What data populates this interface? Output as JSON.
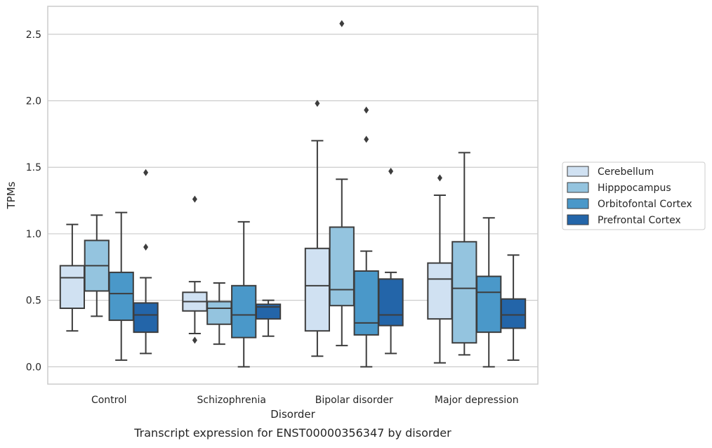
{
  "chart_data": {
    "type": "box",
    "title": "",
    "caption": "Transcript expression for ENST00000356347 by disorder",
    "xlabel": "Disorder",
    "ylabel": "TPMs",
    "ylim": [
      -0.13,
      2.71
    ],
    "yticks": [
      0.0,
      0.5,
      1.0,
      1.5,
      2.0,
      2.5
    ],
    "ytick_labels": [
      "0.0",
      "0.5",
      "1.0",
      "1.5",
      "2.0",
      "2.5"
    ],
    "grid": "horizontal",
    "legend_position": "right",
    "categories": [
      "Control",
      "Schizophrenia",
      "Bipolar disorder",
      "Major depression"
    ],
    "series": [
      {
        "name": "Cerebellum",
        "color": "#d0e1f2",
        "boxes": [
          {
            "whislo": 0.27,
            "q1": 0.44,
            "med": 0.67,
            "q3": 0.76,
            "whishi": 1.07,
            "fliers": []
          },
          {
            "whislo": 0.25,
            "q1": 0.42,
            "med": 0.49,
            "q3": 0.56,
            "whishi": 0.64,
            "fliers": [
              0.2,
              1.26
            ]
          },
          {
            "whislo": 0.08,
            "q1": 0.27,
            "med": 0.61,
            "q3": 0.89,
            "whishi": 1.7,
            "fliers": [
              1.98
            ]
          },
          {
            "whislo": 0.03,
            "q1": 0.36,
            "med": 0.66,
            "q3": 0.78,
            "whishi": 1.29,
            "fliers": [
              1.42
            ]
          }
        ]
      },
      {
        "name": "Hipppocampus",
        "color": "#94c4df",
        "boxes": [
          {
            "whislo": 0.38,
            "q1": 0.57,
            "med": 0.76,
            "q3": 0.95,
            "whishi": 1.14,
            "fliers": []
          },
          {
            "whislo": 0.17,
            "q1": 0.32,
            "med": 0.44,
            "q3": 0.49,
            "whishi": 0.63,
            "fliers": []
          },
          {
            "whislo": 0.16,
            "q1": 0.46,
            "med": 0.58,
            "q3": 1.05,
            "whishi": 1.41,
            "fliers": [
              2.58
            ]
          },
          {
            "whislo": 0.09,
            "q1": 0.18,
            "med": 0.59,
            "q3": 0.94,
            "whishi": 1.61,
            "fliers": []
          }
        ]
      },
      {
        "name": "Orbitofontal Cortex",
        "color": "#4a98c9",
        "boxes": [
          {
            "whislo": 0.05,
            "q1": 0.35,
            "med": 0.55,
            "q3": 0.71,
            "whishi": 1.16,
            "fliers": []
          },
          {
            "whislo": 0.0,
            "q1": 0.22,
            "med": 0.39,
            "q3": 0.61,
            "whishi": 1.09,
            "fliers": []
          },
          {
            "whislo": 0.0,
            "q1": 0.24,
            "med": 0.33,
            "q3": 0.72,
            "whishi": 0.87,
            "fliers": [
              1.71,
              1.93
            ]
          },
          {
            "whislo": 0.0,
            "q1": 0.26,
            "med": 0.56,
            "q3": 0.68,
            "whishi": 1.12,
            "fliers": []
          }
        ]
      },
      {
        "name": "Prefrontal Cortex",
        "color": "#2365a9",
        "boxes": [
          {
            "whislo": 0.1,
            "q1": 0.26,
            "med": 0.39,
            "q3": 0.48,
            "whishi": 0.67,
            "fliers": [
              0.9,
              1.46
            ]
          },
          {
            "whislo": 0.23,
            "q1": 0.36,
            "med": 0.45,
            "q3": 0.47,
            "whishi": 0.5,
            "fliers": []
          },
          {
            "whislo": 0.1,
            "q1": 0.31,
            "med": 0.39,
            "q3": 0.66,
            "whishi": 0.71,
            "fliers": [
              1.47
            ]
          },
          {
            "whislo": 0.05,
            "q1": 0.29,
            "med": 0.39,
            "q3": 0.51,
            "whishi": 0.84,
            "fliers": []
          }
        ]
      }
    ]
  }
}
